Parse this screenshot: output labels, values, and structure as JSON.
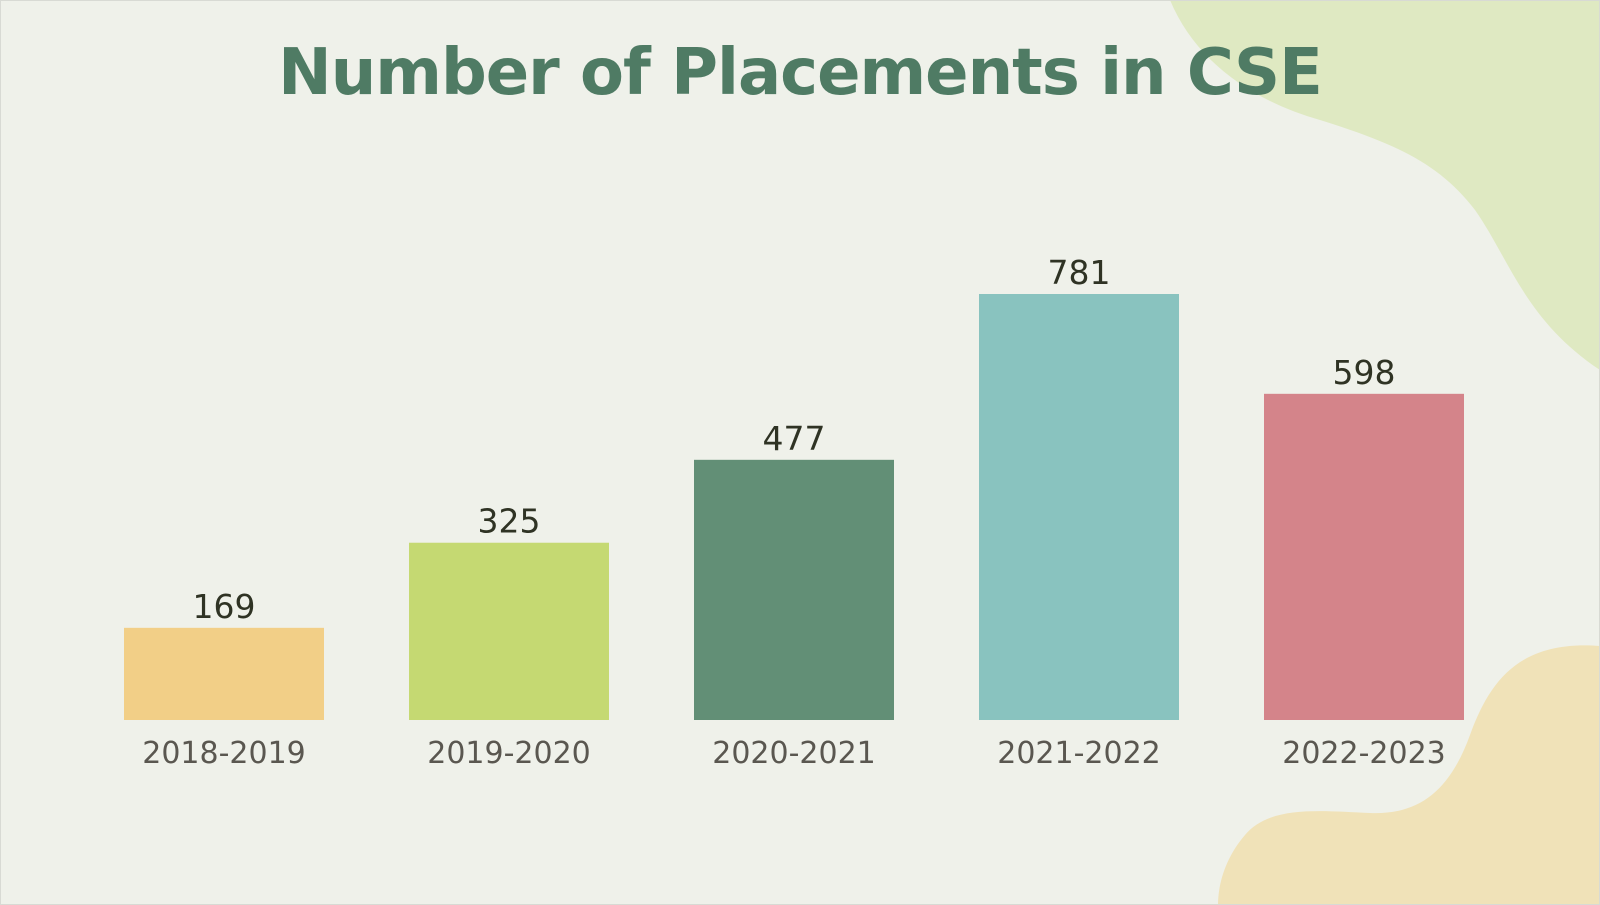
{
  "colors": {
    "background": "#eff1ea",
    "title": "#4f7b64",
    "value_label": "#2f3324",
    "category_label": "#5a5750",
    "blob_top_right": "#dfe9c2",
    "blob_bottom_right": "#f0e2b8"
  },
  "chart_data": {
    "type": "bar",
    "title": "Number of Placements in CSE",
    "xlabel": "",
    "ylabel": "",
    "categories": [
      "2018-2019",
      "2019-2020",
      "2020-2021",
      "2021-2022",
      "2022-2023"
    ],
    "values": [
      169,
      325,
      477,
      781,
      598
    ],
    "value_labels": [
      "169",
      "325",
      "477",
      "781",
      "598"
    ],
    "bar_colors": [
      "#f2cf87",
      "#c5d972",
      "#628f76",
      "#89c3bf",
      "#d4848a"
    ],
    "ylim": [
      0,
      781
    ],
    "grid": false,
    "legend": "none"
  }
}
